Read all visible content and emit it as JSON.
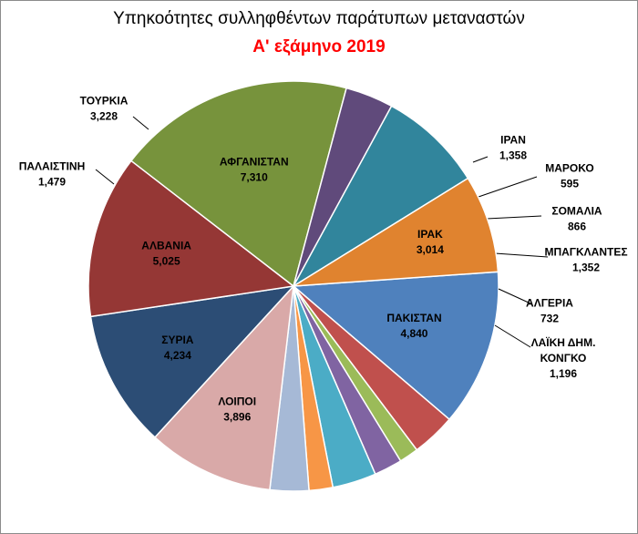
{
  "chart_data": {
    "type": "pie",
    "title": "Υπηκοότητες συλληφθέντων παράτυπων μεταναστών",
    "subtitle": "Α' εξάμηνο 2019",
    "start_angle_deg": -4,
    "slices": [
      {
        "label": "ΠΑΚΙΣΤΑΝ",
        "value": 4840,
        "value_text": "4,840",
        "color": "#4f81bd"
      },
      {
        "label": "ΙΡΑΝ",
        "value": 1358,
        "value_text": "1,358",
        "color": "#c0504d"
      },
      {
        "label": "ΜΑΡΟΚΟ",
        "value": 595,
        "value_text": "595",
        "color": "#9bbb59"
      },
      {
        "label": "ΣΟΜΑΛΙΑ",
        "value": 866,
        "value_text": "866",
        "color": "#8064a2"
      },
      {
        "label": "ΜΠΑΓΚΛΑΝΤΕΣ",
        "value": 1352,
        "value_text": "1,352",
        "color": "#4bacc6"
      },
      {
        "label": "ΑΛΓΕΡΙΑ",
        "value": 732,
        "value_text": "732",
        "color": "#f79646"
      },
      {
        "label": "ΛΑΪΚΗ ΔΗΜ. ΚΟΝΓΚΟ",
        "value": 1196,
        "value_text": "1,196",
        "color": "#a6b9d6"
      },
      {
        "label": "ΛΟΙΠΟΙ",
        "value": 3896,
        "value_text": "3,896",
        "color": "#d9a9a8"
      },
      {
        "label": "ΣΥΡΙΑ",
        "value": 4234,
        "value_text": "4,234",
        "color": "#2c4d75"
      },
      {
        "label": "ΑΛΒΑΝΙΑ",
        "value": 5025,
        "value_text": "5,025",
        "color": "#953735"
      },
      {
        "label": "ΑΦΓΑΝΙΣΤΑΝ",
        "value": 7310,
        "value_text": "7,310",
        "color": "#77933c"
      },
      {
        "label": "ΠΑΛΑΙΣΤΙΝΗ",
        "value": 1479,
        "value_text": "1,479",
        "color": "#604a7b"
      },
      {
        "label": "ΤΟΥΡΚΙΑ",
        "value": 3228,
        "value_text": "3,228",
        "color": "#31859c"
      },
      {
        "label": "ΙΡΑΚ",
        "value": 3014,
        "value_text": "3,014",
        "color": "#e0832f"
      }
    ]
  }
}
